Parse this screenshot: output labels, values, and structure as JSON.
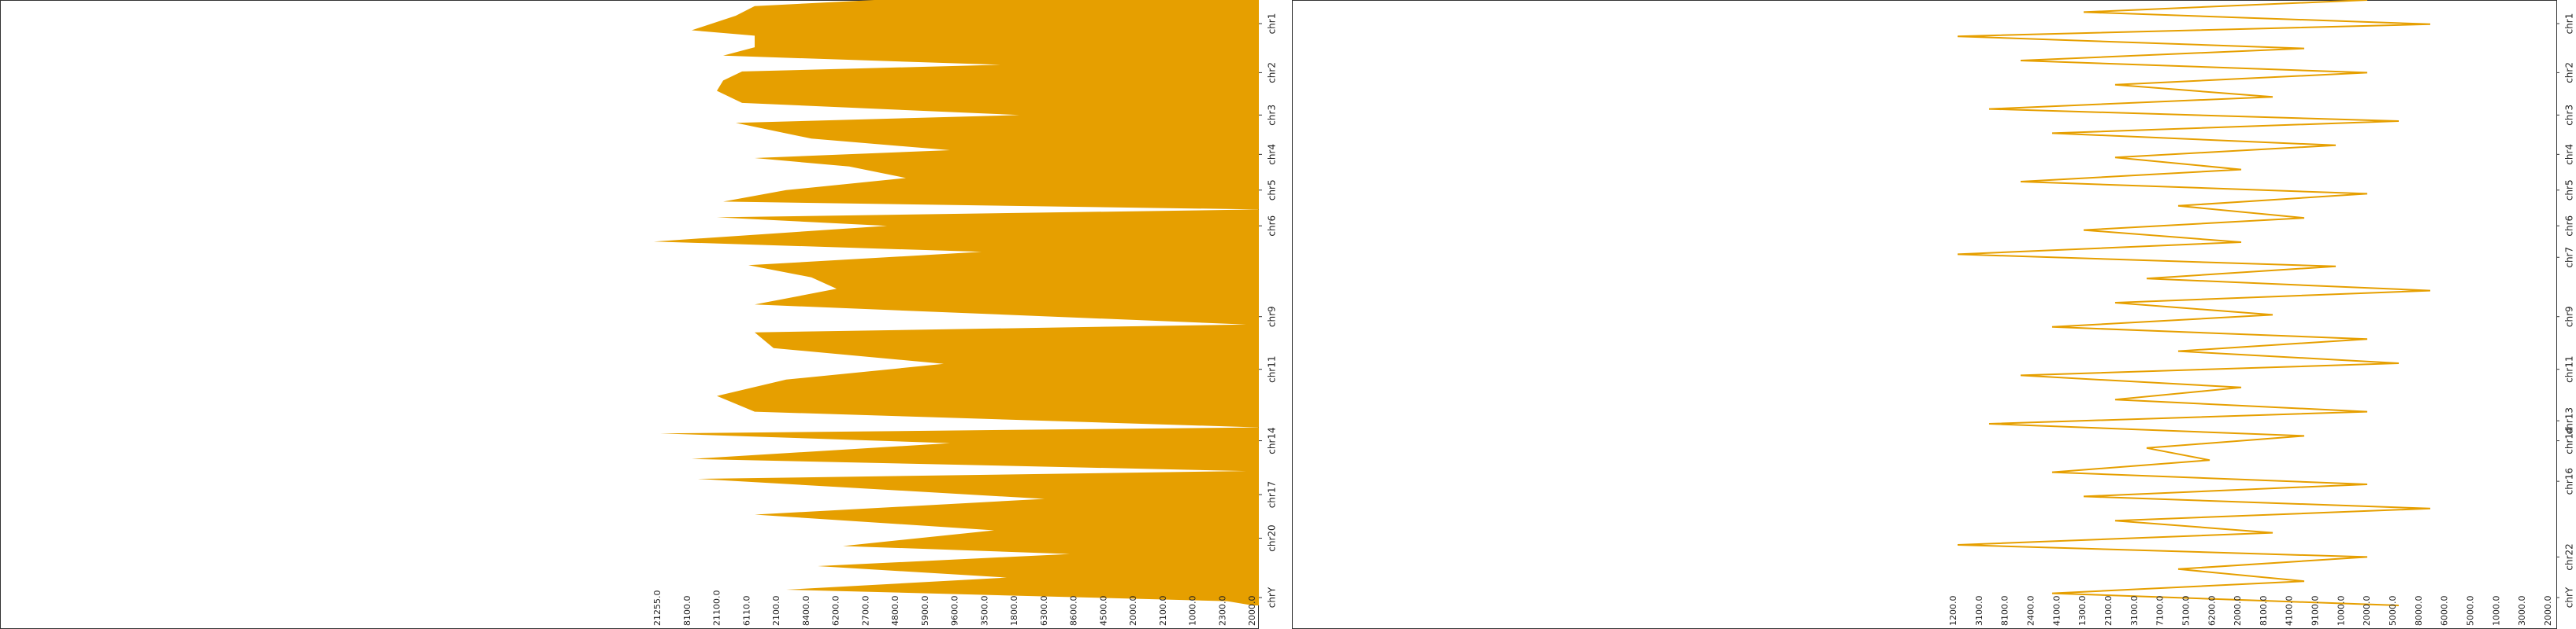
{
  "chart_data": [
    {
      "type": "area",
      "color": "#e69f00",
      "xlim": [
        0,
        100
      ],
      "ylim": [
        0,
        100
      ],
      "yticks": [
        {
          "value": 3.9,
          "label": "chr1"
        },
        {
          "value": 12,
          "label": "chr2"
        },
        {
          "value": 19,
          "label": "chr3"
        },
        {
          "value": 25.5,
          "label": "chr4"
        },
        {
          "value": 31.4,
          "label": "chr5"
        },
        {
          "value": 37.3,
          "label": "chr6"
        },
        {
          "value": 52.3,
          "label": "chr9"
        },
        {
          "value": 61,
          "label": "chr11"
        },
        {
          "value": 72.8,
          "label": "chr14"
        },
        {
          "value": 81.7,
          "label": "chr17"
        },
        {
          "value": 88.9,
          "label": "chr20"
        },
        {
          "value": 98.7,
          "label": "chrY"
        }
      ],
      "positions": [
        0,
        1,
        2.6,
        5,
        5.9,
        7.8,
        9.2,
        10.7,
        11.8,
        13.3,
        15,
        17,
        19,
        20.3,
        22.9,
        24.8,
        26.1,
        27.5,
        29.4,
        31.4,
        33.3,
        34.6,
        35.9,
        37.3,
        39.9,
        41.6,
        43.8,
        45.8,
        47.7,
        50.3,
        53.6,
        54.9,
        57.5,
        60.1,
        62.7,
        65.4,
        68,
        70.6,
        71.6,
        73.2,
        75.8,
        77.8,
        79.1,
        82.4,
        85,
        87.6,
        90.2,
        91.5,
        93.5,
        95.4,
        97.4,
        99.3,
        100
      ],
      "values": [
        61,
        80,
        83,
        90,
        80,
        80,
        85,
        41,
        82,
        85,
        86,
        82,
        38,
        83,
        71,
        49,
        80,
        65,
        56,
        75,
        85,
        0,
        86,
        59,
        96,
        44,
        81,
        71,
        67,
        80,
        2,
        80,
        77,
        50,
        75,
        86,
        80,
        0,
        95,
        49,
        90,
        2,
        89,
        34,
        80,
        42,
        66,
        30,
        70,
        40,
        75,
        5,
        1
      ],
      "bottom_labels": [
        "21255.0",
        "8100.0",
        "21100.0",
        "6110.0",
        "2100.0",
        "8400.0",
        "6200.0",
        "2700.0",
        "4800.0",
        "5900.0",
        "9600.0",
        "3500.0",
        "1800.0",
        "6300.0",
        "8600.0",
        "4500.0",
        "2000.0",
        "2100.0",
        "1000.0",
        "2300.0",
        "2000.0"
      ]
    },
    {
      "type": "line",
      "color": "#e69f00",
      "xlim": [
        0,
        100
      ],
      "ylim": [
        0,
        100
      ],
      "yticks": [
        {
          "value": 3.9,
          "label": "chr1"
        },
        {
          "value": 12,
          "label": "chr2"
        },
        {
          "value": 19,
          "label": "chr3"
        },
        {
          "value": 25.5,
          "label": "chr4"
        },
        {
          "value": 31.4,
          "label": "chr5"
        },
        {
          "value": 37.3,
          "label": "chr6"
        },
        {
          "value": 42.5,
          "label": "chr7"
        },
        {
          "value": 52.3,
          "label": "chr9"
        },
        {
          "value": 61,
          "label": "chr11"
        },
        {
          "value": 69.5,
          "label": "chr13"
        },
        {
          "value": 72.8,
          "label": "chr14"
        },
        {
          "value": 79.5,
          "label": "chr16"
        },
        {
          "value": 92,
          "label": "chr22"
        },
        {
          "value": 98.7,
          "label": "chrY"
        }
      ],
      "positions": [
        0,
        2,
        4,
        6,
        8,
        10,
        12,
        14,
        16,
        18,
        20,
        22,
        24,
        26,
        28,
        30,
        32,
        34,
        36,
        38,
        40,
        42,
        44,
        46,
        48,
        50,
        52,
        54,
        56,
        58,
        60,
        62,
        64,
        66,
        68,
        70,
        72,
        74,
        76,
        78,
        80,
        82,
        84,
        86,
        88,
        90,
        92,
        94,
        96,
        98,
        100
      ],
      "values": [
        30,
        75,
        20,
        95,
        40,
        85,
        30,
        70,
        45,
        90,
        25,
        80,
        35,
        70,
        50,
        85,
        30,
        60,
        40,
        75,
        50,
        95,
        35,
        65,
        20,
        70,
        45,
        80,
        30,
        60,
        25,
        85,
        50,
        70,
        30,
        90,
        40,
        65,
        55,
        80,
        30,
        75,
        20,
        70,
        45,
        95,
        30,
        60,
        40,
        80,
        25
      ],
      "bottom_labels": [
        "1200.0",
        "3100.0",
        "8100.0",
        "2400.0",
        "4100.0",
        "1300.0",
        "2100.0",
        "3100.0",
        "7100.0",
        "5100.0",
        "6200.0",
        "2000.0",
        "8100.0",
        "4100.0",
        "9100.0",
        "1000.0",
        "2000.0",
        "5000.0",
        "8000.0",
        "6000.0",
        "5000.0",
        "1000.0",
        "3000.0",
        "2000.0"
      ]
    }
  ]
}
